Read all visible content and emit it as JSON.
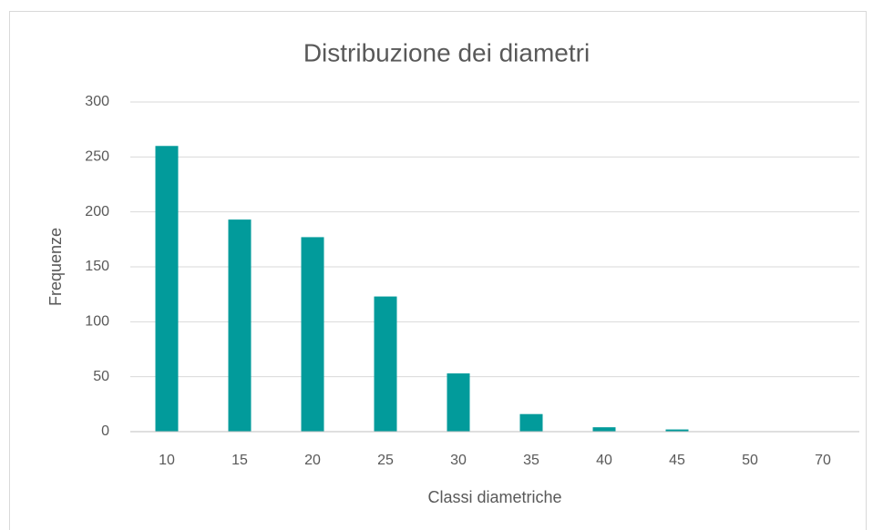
{
  "chart_data": {
    "type": "bar",
    "title": "Distribuzione dei diametri",
    "x_label": "Classi diametriche",
    "y_label": "Frequenze",
    "categories": [
      "10",
      "15",
      "20",
      "25",
      "30",
      "35",
      "40",
      "45",
      "50",
      "70"
    ],
    "values": [
      260,
      193,
      177,
      123,
      53,
      16,
      4,
      2,
      0,
      0
    ],
    "color": "#029b9b",
    "ylim": [
      0,
      300
    ],
    "yticks": [
      0,
      50,
      100,
      150,
      200,
      250,
      300
    ],
    "grid": true
  }
}
